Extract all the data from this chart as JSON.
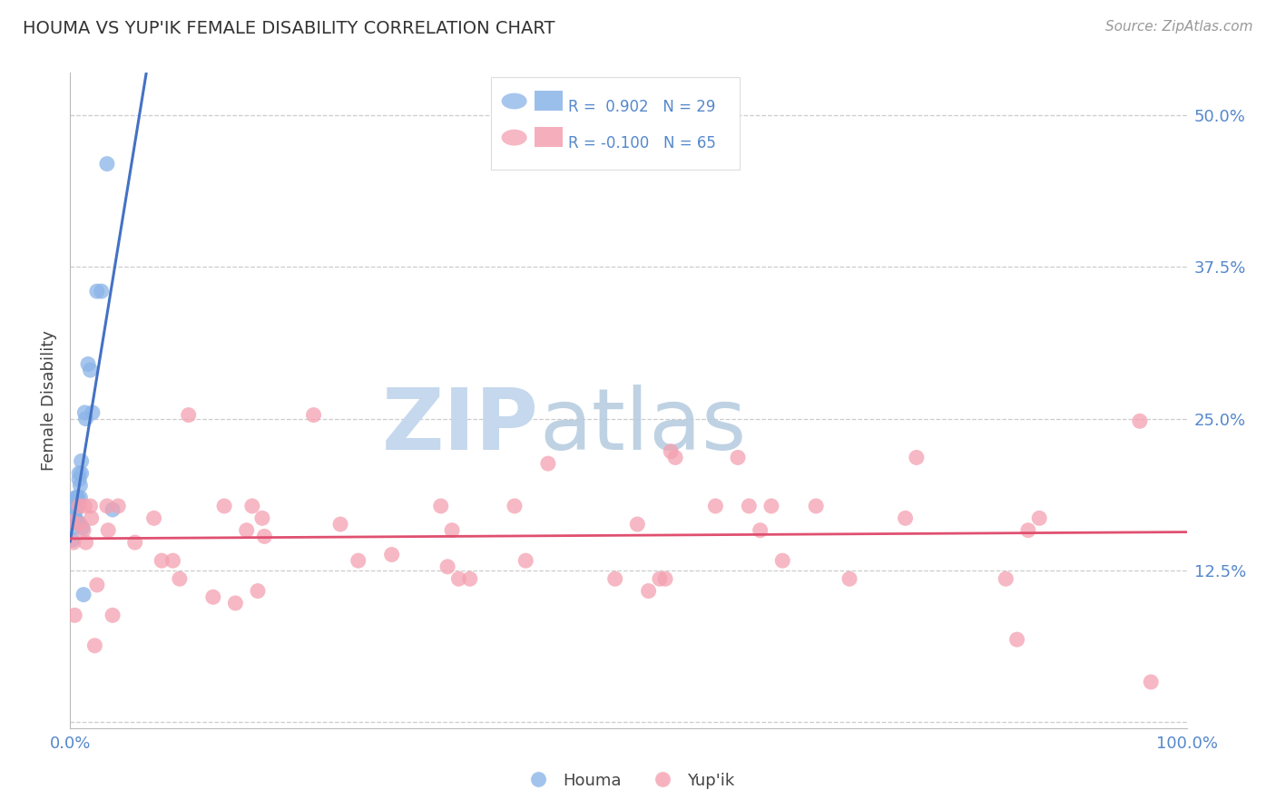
{
  "title": "HOUMA VS YUP'IK FEMALE DISABILITY CORRELATION CHART",
  "source": "Source: ZipAtlas.com",
  "ylabel": "Female Disability",
  "houma_color": "#8AB4E8",
  "yupik_color": "#F4A0B0",
  "houma_line_color": "#4472C4",
  "yupik_line_color": "#E05070",
  "legend_R_houma": "R =  0.902",
  "legend_N_houma": "N = 29",
  "legend_R_yupik": "R = -0.100",
  "legend_N_yupik": "N = 65",
  "grid_color": "#CCCCCC",
  "tick_color": "#5588CC",
  "xlim": [
    0.0,
    1.0
  ],
  "ylim": [
    -0.005,
    0.535
  ],
  "houma_x": [
    0.002,
    0.002,
    0.003,
    0.003,
    0.004,
    0.004,
    0.005,
    0.005,
    0.006,
    0.006,
    0.007,
    0.007,
    0.008,
    0.008,
    0.009,
    0.009,
    0.01,
    0.01,
    0.011,
    0.012,
    0.013,
    0.014,
    0.016,
    0.018,
    0.02,
    0.024,
    0.028,
    0.033,
    0.038
  ],
  "houma_y": [
    0.16,
    0.15,
    0.175,
    0.165,
    0.175,
    0.17,
    0.185,
    0.175,
    0.185,
    0.165,
    0.185,
    0.165,
    0.2,
    0.205,
    0.195,
    0.185,
    0.215,
    0.205,
    0.16,
    0.105,
    0.255,
    0.25,
    0.295,
    0.29,
    0.255,
    0.355,
    0.355,
    0.46,
    0.175
  ],
  "yupik_x": [
    0.002,
    0.003,
    0.004,
    0.008,
    0.009,
    0.012,
    0.013,
    0.014,
    0.018,
    0.019,
    0.022,
    0.024,
    0.033,
    0.034,
    0.038,
    0.043,
    0.058,
    0.075,
    0.082,
    0.092,
    0.098,
    0.106,
    0.128,
    0.138,
    0.148,
    0.158,
    0.163,
    0.168,
    0.172,
    0.174,
    0.218,
    0.242,
    0.258,
    0.288,
    0.332,
    0.338,
    0.342,
    0.348,
    0.358,
    0.398,
    0.408,
    0.428,
    0.488,
    0.508,
    0.518,
    0.528,
    0.533,
    0.538,
    0.542,
    0.578,
    0.598,
    0.608,
    0.618,
    0.628,
    0.638,
    0.668,
    0.698,
    0.748,
    0.758,
    0.838,
    0.848,
    0.858,
    0.868,
    0.958,
    0.968
  ],
  "yupik_y": [
    0.165,
    0.148,
    0.088,
    0.178,
    0.163,
    0.158,
    0.178,
    0.148,
    0.178,
    0.168,
    0.063,
    0.113,
    0.178,
    0.158,
    0.088,
    0.178,
    0.148,
    0.168,
    0.133,
    0.133,
    0.118,
    0.253,
    0.103,
    0.178,
    0.098,
    0.158,
    0.178,
    0.108,
    0.168,
    0.153,
    0.253,
    0.163,
    0.133,
    0.138,
    0.178,
    0.128,
    0.158,
    0.118,
    0.118,
    0.178,
    0.133,
    0.213,
    0.118,
    0.163,
    0.108,
    0.118,
    0.118,
    0.223,
    0.218,
    0.178,
    0.218,
    0.178,
    0.158,
    0.178,
    0.133,
    0.178,
    0.118,
    0.168,
    0.218,
    0.118,
    0.068,
    0.158,
    0.168,
    0.248,
    0.033
  ]
}
